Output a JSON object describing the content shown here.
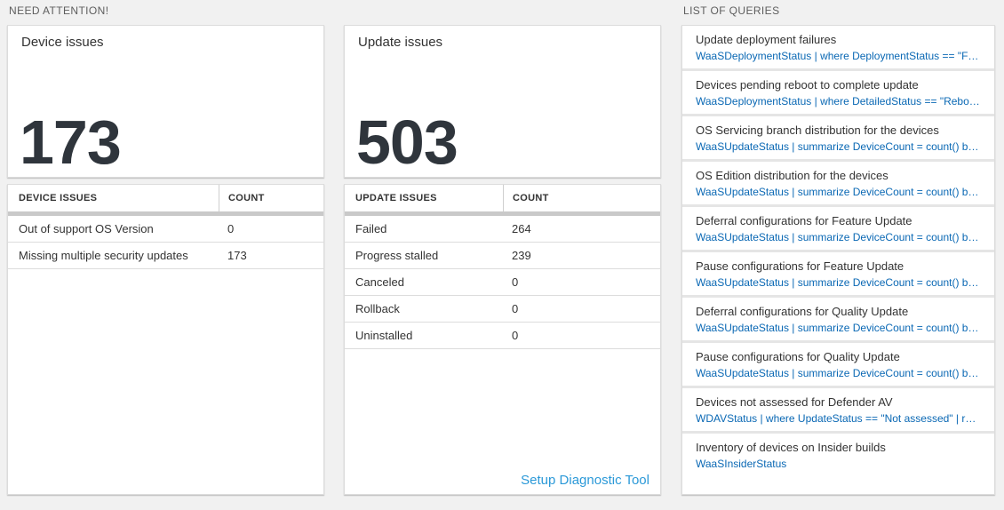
{
  "sections": {
    "need_attention": "NEED ATTENTION!",
    "list_of_queries": "LIST OF QUERIES"
  },
  "device_card": {
    "title": "Device issues",
    "big_number": "173",
    "table": {
      "headers": [
        "DEVICE ISSUES",
        "COUNT"
      ],
      "rows": [
        [
          "Out of support OS Version",
          "0"
        ],
        [
          "Missing multiple security updates",
          "173"
        ]
      ]
    }
  },
  "update_card": {
    "title": "Update issues",
    "big_number": "503",
    "table": {
      "headers": [
        "UPDATE ISSUES",
        "COUNT"
      ],
      "rows": [
        [
          "Failed",
          "264"
        ],
        [
          "Progress stalled",
          "239"
        ],
        [
          "Canceled",
          "0"
        ],
        [
          "Rollback",
          "0"
        ],
        [
          "Uninstalled",
          "0"
        ]
      ]
    },
    "link": "Setup Diagnostic Tool"
  },
  "queries": [
    {
      "title": "Update deployment failures",
      "query": "WaaSDeploymentStatus | where DeploymentStatus == \"Failed\" |..."
    },
    {
      "title": "Devices pending reboot to complete update",
      "query": "WaaSDeploymentStatus | where DetailedStatus == \"Reboot pend..."
    },
    {
      "title": "OS Servicing branch distribution for the devices",
      "query": "WaaSUpdateStatus | summarize DeviceCount = count() by OSSer..."
    },
    {
      "title": "OS Edition distribution for the devices",
      "query": "WaaSUpdateStatus | summarize DeviceCount = count() by OSEdit..."
    },
    {
      "title": "Deferral configurations for Feature Update",
      "query": "WaaSUpdateStatus | summarize DeviceCount = count() by Featur..."
    },
    {
      "title": "Pause configurations for Feature Update",
      "query": "WaaSUpdateStatus | summarize DeviceCount = count() by Featur..."
    },
    {
      "title": "Deferral configurations for Quality Update",
      "query": "WaaSUpdateStatus | summarize DeviceCount = count() by Qualit..."
    },
    {
      "title": "Pause configurations for Quality Update",
      "query": "WaaSUpdateStatus | summarize DeviceCount = count() by Qualit..."
    },
    {
      "title": "Devices not assessed for Defender AV",
      "query": "WDAVStatus | where UpdateStatus == \"Not assessed\" | render ta..."
    },
    {
      "title": "Inventory of devices on Insider builds",
      "query": "WaaSInsiderStatus"
    }
  ],
  "colors": {
    "page_background": "#f1f1f1",
    "link_blue": "#2b99d8",
    "query_code_blue": "#0a68b4",
    "scroll_bar_gray": "#c9c9c9",
    "big_number_text": "#2f353c"
  }
}
